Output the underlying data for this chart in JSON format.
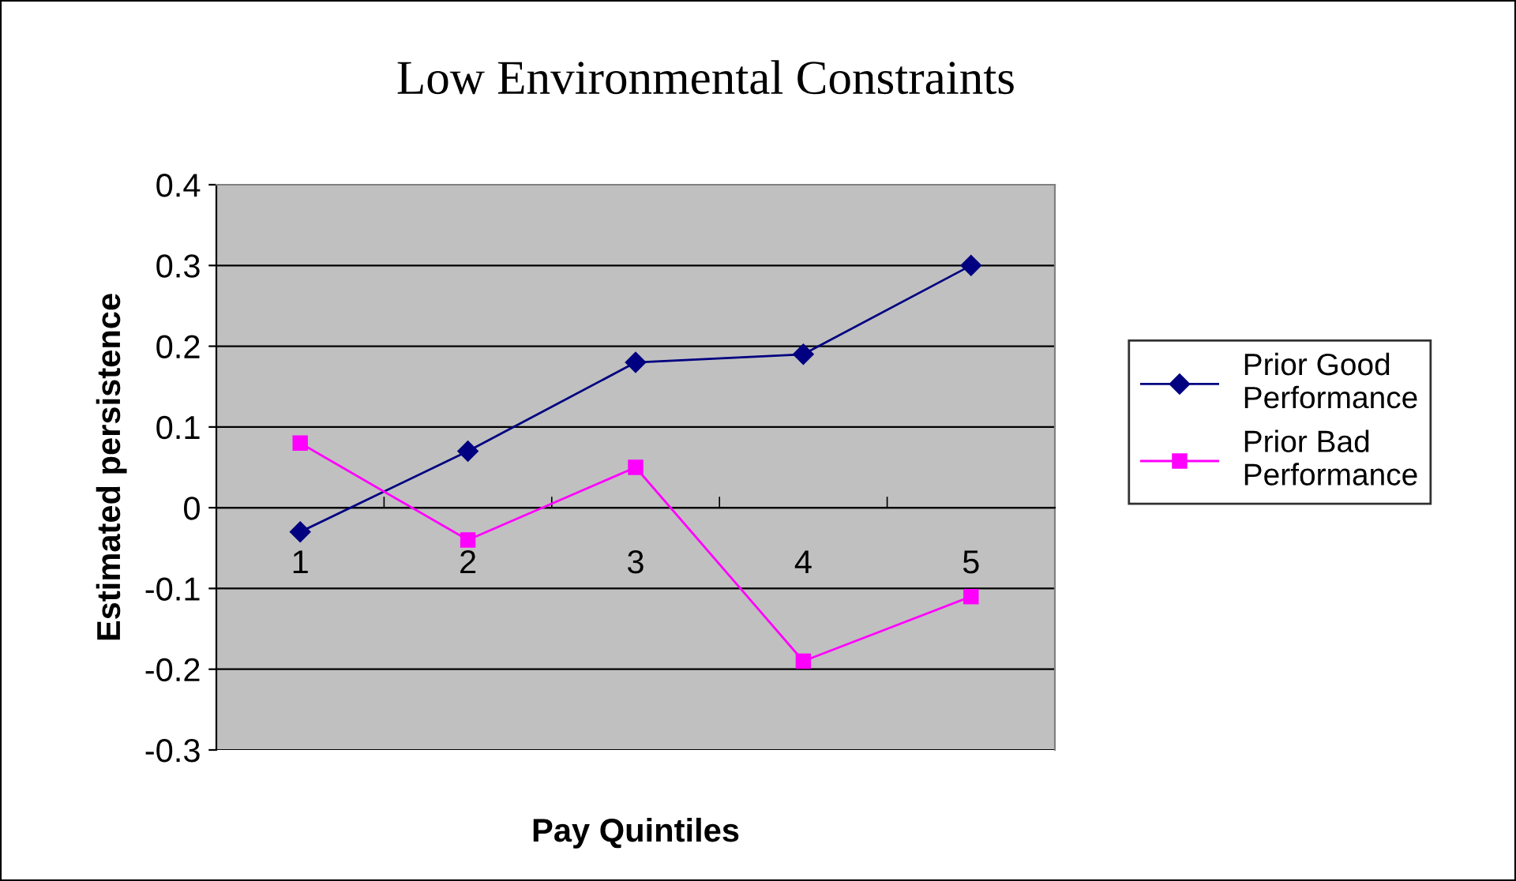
{
  "chart_data": {
    "type": "line",
    "title": "Low Environmental Constraints",
    "xlabel": "Pay Quintiles",
    "ylabel": "Estimated persistence",
    "categories": [
      "1",
      "2",
      "3",
      "4",
      "5"
    ],
    "series": [
      {
        "name": "Prior Good Performance",
        "color": "#000080",
        "marker": "diamond",
        "values": [
          -0.03,
          0.07,
          0.18,
          0.19,
          0.3
        ]
      },
      {
        "name": "Prior Bad Performance",
        "color": "#ff00ff",
        "marker": "square",
        "values": [
          0.08,
          -0.04,
          0.05,
          -0.19,
          -0.11
        ]
      }
    ],
    "ylim": [
      -0.3,
      0.4
    ],
    "yticks": [
      -0.3,
      -0.2,
      -0.1,
      0,
      0.1,
      0.2,
      0.3,
      0.4
    ],
    "grid": "y",
    "legend": "right",
    "line_style": "solid"
  }
}
